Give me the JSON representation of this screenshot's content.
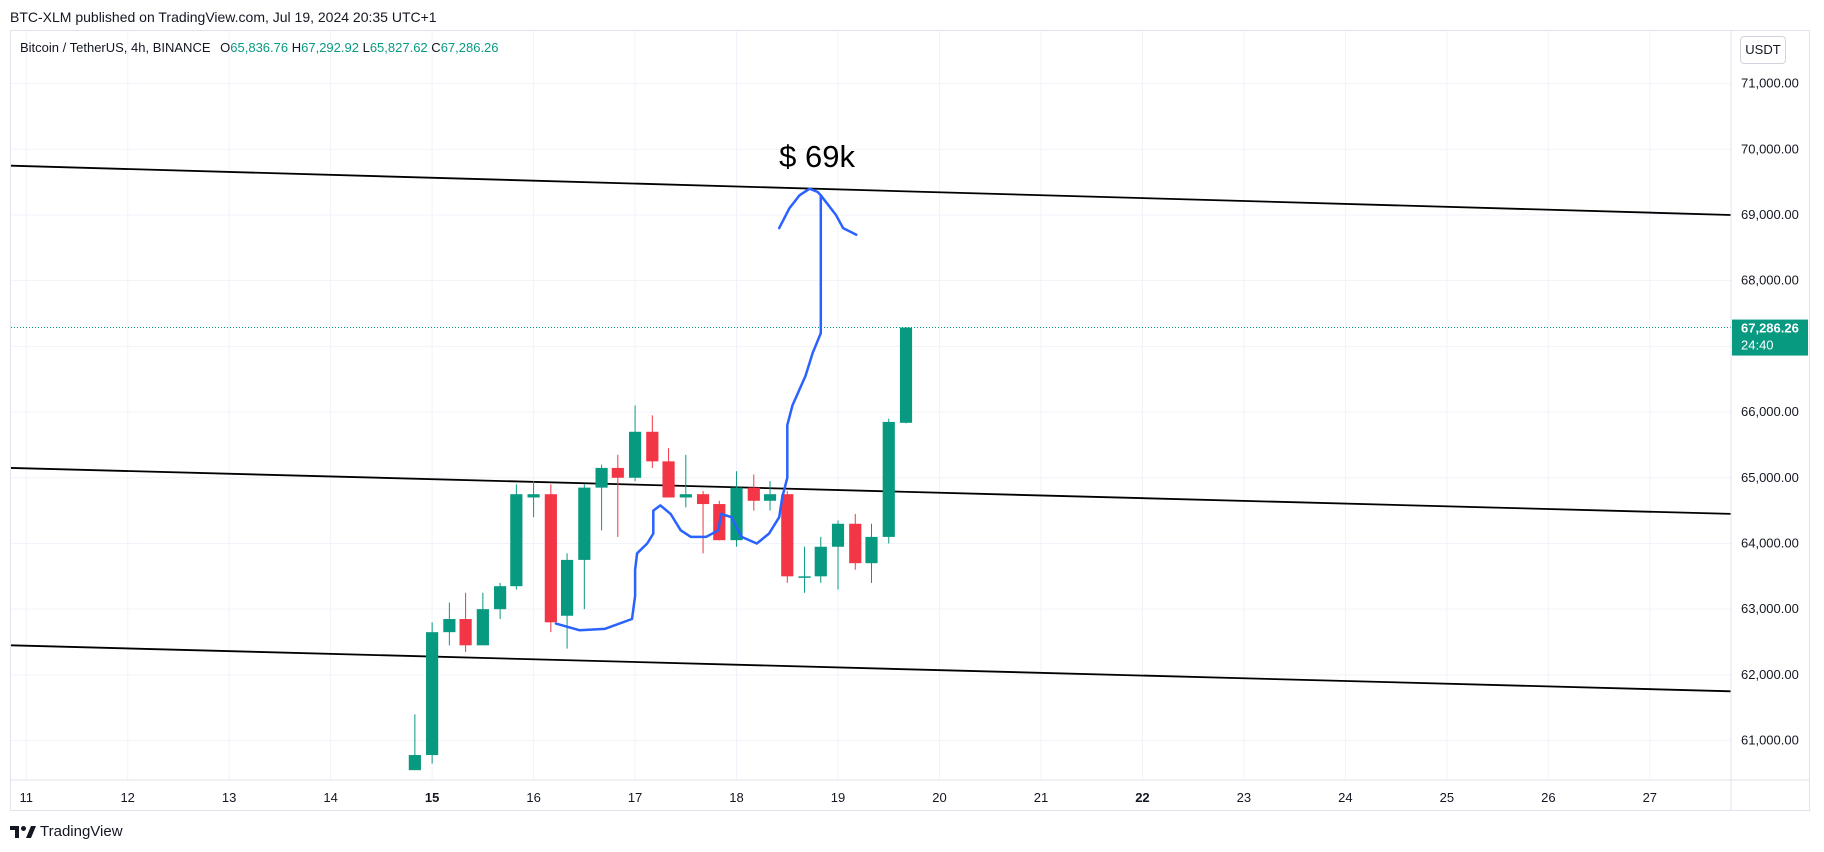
{
  "header": {
    "text": "BTC-XLM published on TradingView.com, Jul 19, 2024 20:35 UTC+1"
  },
  "legend": {
    "symbol": "Bitcoin / TetherUS, 4h, BINANCE",
    "open_key": "O",
    "open": "65,836.76",
    "high_key": "H",
    "high": "67,292.92",
    "low_key": "L",
    "low": "65,827.62",
    "close_key": "C",
    "close": "67,286.26"
  },
  "currency_button": "USDT",
  "annotation_text": "$ 69k",
  "last_price": {
    "price": "67,286.26",
    "countdown": "24:40"
  },
  "footer": {
    "brand": "TradingView"
  },
  "colors": {
    "up": "#089981",
    "down": "#f23645",
    "drawing": "#2962ff",
    "line": "#000000"
  },
  "chart_data": {
    "type": "candlestick",
    "interval": "4h",
    "y_axis": {
      "ticks": [
        61000,
        62000,
        63000,
        64000,
        65000,
        66000,
        67000,
        68000,
        69000,
        70000,
        71000
      ],
      "tick_labels": [
        "61,000.00",
        "62,000.00",
        "63,000.00",
        "64,000.00",
        "65,000.00",
        "66,000.00",
        "67,000.00",
        "68,000.00",
        "69,000.00",
        "70,000.00",
        "71,000.00"
      ],
      "range": [
        60400,
        71800
      ]
    },
    "x_axis": {
      "ticks": [
        11,
        12,
        13,
        14,
        15,
        16,
        17,
        18,
        19,
        20,
        21,
        22,
        23,
        24,
        25,
        26,
        27
      ],
      "tick_labels": [
        "11",
        "12",
        "13",
        "14",
        "15",
        "16",
        "17",
        "18",
        "19",
        "20",
        "21",
        "22",
        "23",
        "24",
        "25",
        "26",
        "27"
      ],
      "bold_labels": [
        "15",
        "22"
      ],
      "range": [
        10.85,
        27.8
      ]
    },
    "candles": [
      {
        "t": 14.83,
        "o": 60550,
        "h": 61400,
        "l": 60550,
        "c": 60780
      },
      {
        "t": 15.0,
        "o": 60780,
        "h": 62800,
        "l": 60650,
        "c": 62650
      },
      {
        "t": 15.17,
        "o": 62650,
        "h": 63100,
        "l": 62450,
        "c": 62850
      },
      {
        "t": 15.33,
        "o": 62850,
        "h": 63250,
        "l": 62350,
        "c": 62450
      },
      {
        "t": 15.5,
        "o": 62450,
        "h": 63250,
        "l": 62450,
        "c": 63000
      },
      {
        "t": 15.67,
        "o": 63000,
        "h": 63400,
        "l": 62850,
        "c": 63350
      },
      {
        "t": 15.83,
        "o": 63350,
        "h": 64900,
        "l": 63300,
        "c": 64750
      },
      {
        "t": 16.0,
        "o": 64700,
        "h": 64950,
        "l": 64400,
        "c": 64750
      },
      {
        "t": 16.17,
        "o": 64750,
        "h": 64900,
        "l": 62650,
        "c": 62800
      },
      {
        "t": 16.33,
        "o": 62900,
        "h": 63850,
        "l": 62400,
        "c": 63750
      },
      {
        "t": 16.5,
        "o": 63750,
        "h": 64900,
        "l": 63000,
        "c": 64850
      },
      {
        "t": 16.67,
        "o": 64850,
        "h": 65200,
        "l": 64200,
        "c": 65150
      },
      {
        "t": 16.83,
        "o": 65150,
        "h": 65350,
        "l": 64100,
        "c": 65000
      },
      {
        "t": 17.0,
        "o": 65000,
        "h": 66100,
        "l": 64950,
        "c": 65700
      },
      {
        "t": 17.17,
        "o": 65700,
        "h": 65950,
        "l": 65150,
        "c": 65250
      },
      {
        "t": 17.33,
        "o": 65250,
        "h": 65450,
        "l": 64700,
        "c": 64700
      },
      {
        "t": 17.5,
        "o": 64700,
        "h": 65350,
        "l": 64550,
        "c": 64750
      },
      {
        "t": 17.67,
        "o": 64750,
        "h": 64800,
        "l": 63850,
        "c": 64600
      },
      {
        "t": 17.83,
        "o": 64600,
        "h": 64650,
        "l": 64050,
        "c": 64050
      },
      {
        "t": 18.0,
        "o": 64050,
        "h": 65100,
        "l": 63950,
        "c": 64850
      },
      {
        "t": 18.17,
        "o": 64850,
        "h": 65050,
        "l": 64500,
        "c": 64650
      },
      {
        "t": 18.33,
        "o": 64650,
        "h": 64950,
        "l": 64500,
        "c": 64750
      },
      {
        "t": 18.5,
        "o": 64750,
        "h": 64800,
        "l": 63400,
        "c": 63500
      },
      {
        "t": 18.67,
        "o": 63500,
        "h": 63950,
        "l": 63250,
        "c": 63500
      },
      {
        "t": 18.83,
        "o": 63500,
        "h": 64100,
        "l": 63400,
        "c": 63950
      },
      {
        "t": 19.0,
        "o": 63950,
        "h": 64350,
        "l": 63300,
        "c": 64300
      },
      {
        "t": 19.17,
        "o": 64300,
        "h": 64450,
        "l": 63600,
        "c": 63700
      },
      {
        "t": 19.33,
        "o": 63700,
        "h": 64300,
        "l": 63400,
        "c": 64100
      },
      {
        "t": 19.5,
        "o": 64100,
        "h": 65900,
        "l": 64000,
        "c": 65850
      },
      {
        "t": 19.67,
        "o": 65836.76,
        "h": 67292.92,
        "l": 65827.62,
        "c": 67286.26
      }
    ],
    "trendlines": [
      {
        "x1": 10.85,
        "y1": 69750,
        "x2": 27.8,
        "y2": 69000
      },
      {
        "x1": 10.85,
        "y1": 65150,
        "x2": 27.8,
        "y2": 64450
      },
      {
        "x1": 10.85,
        "y1": 62450,
        "x2": 27.8,
        "y2": 61750
      }
    ],
    "freehand_drawing": [
      [
        16.22,
        62780
      ],
      [
        16.45,
        62680
      ],
      [
        16.7,
        62700
      ],
      [
        16.97,
        62850
      ],
      [
        17.0,
        63200
      ],
      [
        17.0,
        63600
      ],
      [
        17.02,
        63850
      ],
      [
        17.12,
        64000
      ],
      [
        17.18,
        64150
      ],
      [
        17.18,
        64500
      ],
      [
        17.25,
        64580
      ],
      [
        17.35,
        64450
      ],
      [
        17.45,
        64200
      ],
      [
        17.55,
        64100
      ],
      [
        17.7,
        64100
      ],
      [
        17.82,
        64200
      ],
      [
        17.85,
        64450
      ],
      [
        17.95,
        64400
      ],
      [
        18.05,
        64100
      ],
      [
        18.2,
        64000
      ],
      [
        18.32,
        64150
      ],
      [
        18.42,
        64400
      ],
      [
        18.45,
        64700
      ],
      [
        18.5,
        65000
      ],
      [
        18.5,
        65800
      ],
      [
        18.55,
        66100
      ],
      [
        18.68,
        66550
      ],
      [
        18.75,
        66900
      ],
      [
        18.83,
        67200
      ],
      [
        18.83,
        69300
      ],
      [
        18.8,
        69350
      ],
      [
        18.72,
        69400
      ],
      [
        18.62,
        69300
      ],
      [
        18.52,
        69100
      ],
      [
        18.42,
        68800
      ]
    ],
    "freehand_tail": [
      [
        18.83,
        69300
      ],
      [
        18.98,
        69000
      ],
      [
        19.05,
        68800
      ],
      [
        19.18,
        68700
      ]
    ],
    "last_price_level": 67286.26
  }
}
